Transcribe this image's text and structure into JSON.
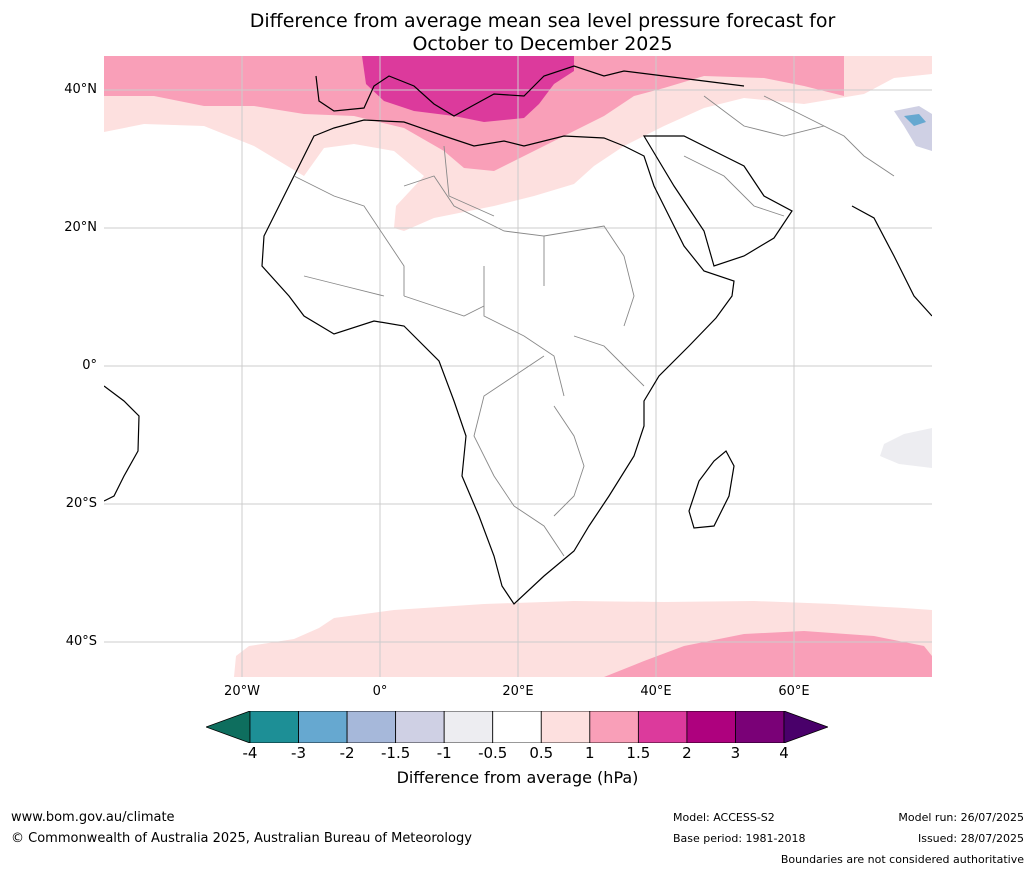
{
  "title_line1": "Difference from average mean sea level pressure forecast for",
  "title_line2": "October to December 2025",
  "lat_labels": [
    "40°N",
    "20°N",
    "0°",
    "20°S",
    "40°S"
  ],
  "lon_labels": [
    "20°W",
    "0°",
    "20°E",
    "40°E",
    "60°E"
  ],
  "colorbar": {
    "label": "Difference from average (hPa)",
    "ticks": [
      "-4",
      "-3",
      "-2",
      "-1.5",
      "-1",
      "-0.5",
      "0.5",
      "1",
      "1.5",
      "2",
      "3",
      "4"
    ],
    "colors": [
      "#0e6e5e",
      "#1d8f96",
      "#66a8d0",
      "#a6b8da",
      "#cfd0e4",
      "#ededf1",
      "#ffffff",
      "#fde0df",
      "#f99fb8",
      "#dc3a9c",
      "#ae017e",
      "#7a0177",
      "#49006a"
    ]
  },
  "footer": {
    "website": "www.bom.gov.au/climate",
    "copyright": "© Commonwealth of Australia 2025, Australian Bureau of Meteorology",
    "model": "Model: ACCESS-S2",
    "base_period": "Base period: 1981-2018",
    "model_run": "Model run: 26/07/2025",
    "issued": "Issued: 28/07/2025",
    "disclaimer": "Boundaries are not considered authoritative"
  }
}
